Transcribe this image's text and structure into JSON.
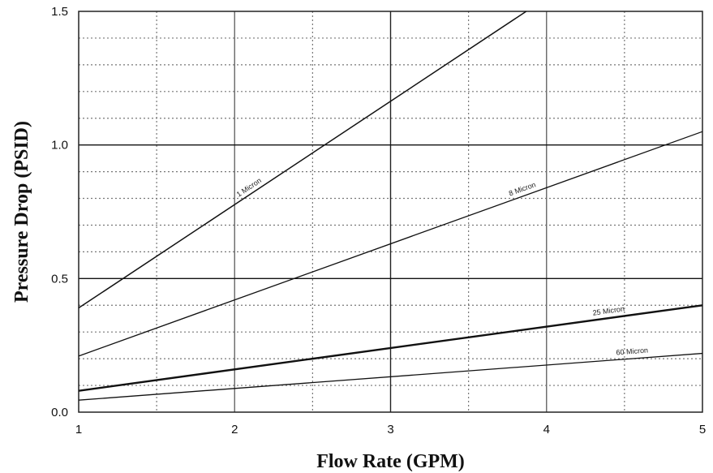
{
  "chart_data": {
    "type": "line",
    "title": "",
    "xlabel": "Flow Rate (GPM)",
    "ylabel": "Pressure Drop (PSID)",
    "xlim": [
      1,
      5
    ],
    "ylim": [
      0,
      1.5
    ],
    "x_ticks": [
      "1",
      "2",
      "3",
      "4",
      "5"
    ],
    "y_ticks": [
      "0.0",
      "0.5",
      "1.0",
      "1.5"
    ],
    "grid": true,
    "legend": "none (inline labels on lines)",
    "series": [
      {
        "name": "1 Micron",
        "x": [
          1,
          3.87
        ],
        "y": [
          0.39,
          1.5
        ]
      },
      {
        "name": "8 Micron",
        "x": [
          1,
          5
        ],
        "y": [
          0.21,
          1.05
        ]
      },
      {
        "name": "25 Micron",
        "x": [
          1,
          5
        ],
        "y": [
          0.08,
          0.4
        ]
      },
      {
        "name": "60 Micron",
        "x": [
          1,
          5
        ],
        "y": [
          0.045,
          0.22
        ]
      }
    ]
  }
}
